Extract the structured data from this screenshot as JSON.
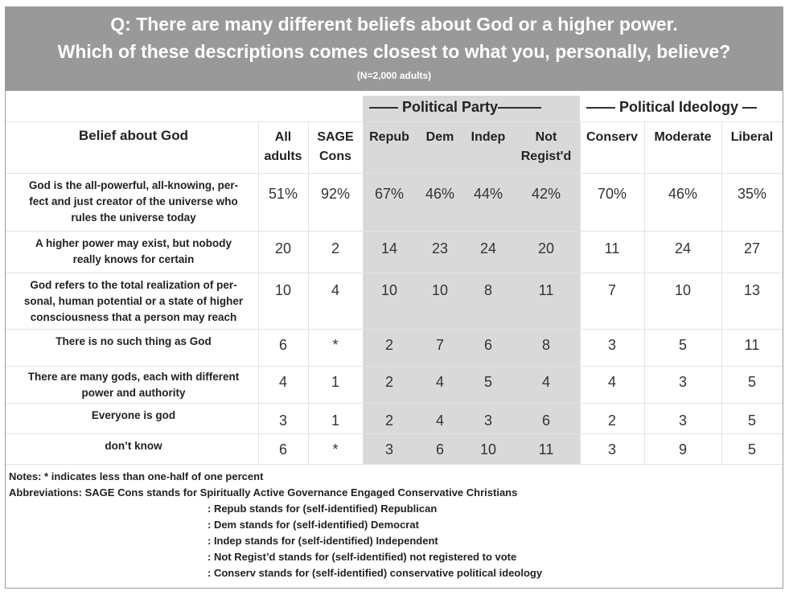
{
  "header": {
    "line1": "Q: There are many different beliefs about God or a higher power.",
    "line2": "Which of these descriptions comes closest to what you, personally, believe?",
    "sample": "(N=2,000 adults)"
  },
  "groups": {
    "party": "—— Political Party———",
    "ideology": "—— Political Ideology —"
  },
  "columns": {
    "belief": "Belief about God",
    "all": [
      "All",
      "adults"
    ],
    "sage": [
      "SAGE",
      "Cons"
    ],
    "repub": [
      "Repub"
    ],
    "dem": [
      "Dem"
    ],
    "indep": [
      "Indep"
    ],
    "notreg": [
      "Not",
      "Regist'd"
    ],
    "conserv": [
      "Conserv"
    ],
    "moderate": [
      "Moderate"
    ],
    "liberal": [
      "Liberal"
    ]
  },
  "rows": [
    {
      "label": [
        "God is the all-powerful, all-knowing, per-",
        "fect and just creator of the universe who",
        "rules the universe today"
      ],
      "values": [
        "51%",
        "92%",
        "67%",
        "46%",
        "44%",
        "42%",
        "70%",
        "46%",
        "35%"
      ]
    },
    {
      "label": [
        "A higher power may exist, but nobody",
        "really knows for certain"
      ],
      "values": [
        "20",
        "2",
        "14",
        "23",
        "24",
        "20",
        "11",
        "24",
        "27"
      ]
    },
    {
      "label": [
        "God refers to the total realization of per-",
        "sonal, human potential or a state of higher",
        "consciousness that a person may reach"
      ],
      "values": [
        "10",
        "4",
        "10",
        "10",
        "8",
        "11",
        "7",
        "10",
        "13"
      ]
    },
    {
      "label": [
        "There is no such thing as God"
      ],
      "values": [
        "6",
        "*",
        "2",
        "7",
        "6",
        "8",
        "3",
        "5",
        "11"
      ]
    },
    {
      "label": [
        "There are many gods, each with different",
        "power and authority"
      ],
      "values": [
        "4",
        "1",
        "2",
        "4",
        "5",
        "4",
        "4",
        "3",
        "5"
      ]
    },
    {
      "label": [
        "Everyone is god"
      ],
      "values": [
        "3",
        "1",
        "2",
        "4",
        "3",
        "6",
        "2",
        "3",
        "5"
      ]
    },
    {
      "label": [
        "don’t know"
      ],
      "values": [
        "6",
        "*",
        "3",
        "6",
        "10",
        "11",
        "3",
        "9",
        "5"
      ]
    }
  ],
  "notes": [
    "Notes: * indicates less than one-half of one percent",
    "Abbreviations: SAGE Cons stands for Spiritually Active Governance Engaged Conservative Christians",
    ": Repub stands for (self-identified) Republican",
    ": Dem stands for (self-identified) Democrat",
    ": Indep stands for (self-identified) Independent",
    ": Not Regist’d stands for (self-identified) not registered to vote",
    ": Conserv stands for (self-identified) conservative political ideology"
  ]
}
